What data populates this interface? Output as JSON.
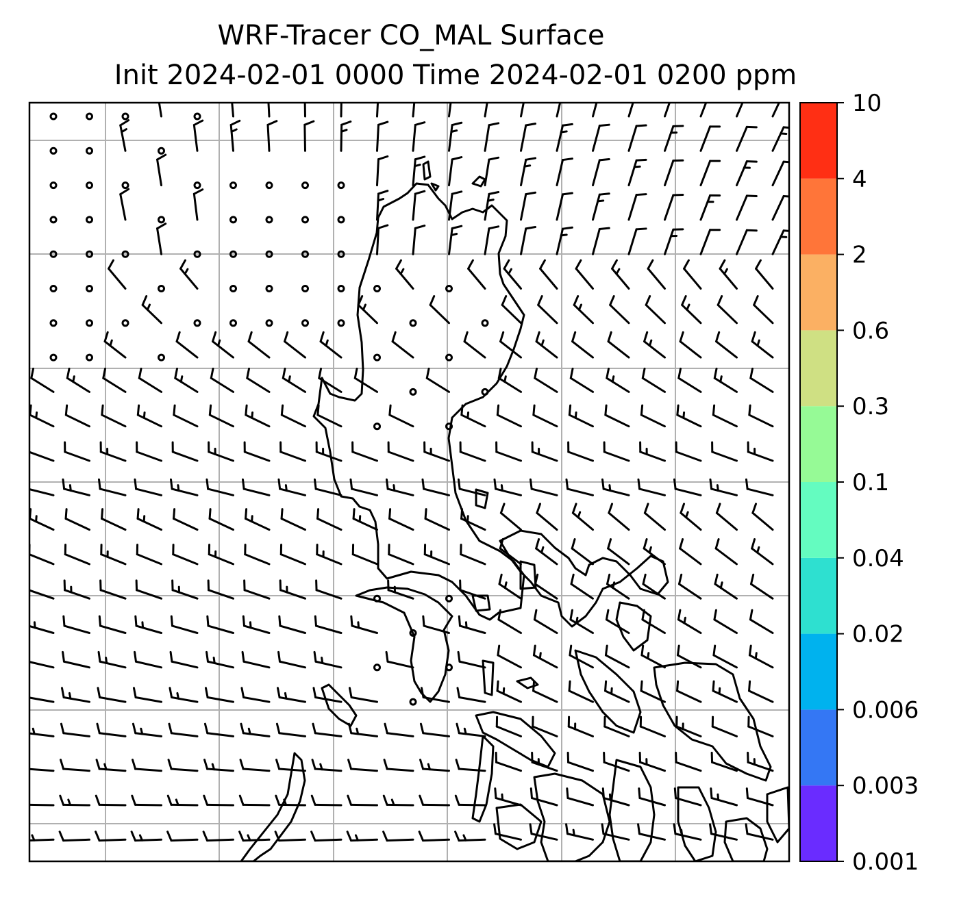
{
  "title": {
    "line1": "WRF-Tracer CO_MAL Surface",
    "line2": "Init 2024-02-01 0000 Time 2024-02-01 0200 ppm"
  },
  "map": {
    "grid": true,
    "features": [
      "coastlines",
      "wind-barbs",
      "calm-wind-circles"
    ],
    "line_color": "#000000",
    "grid_color": "#b0b0b0"
  },
  "colorbar": {
    "orientation": "vertical",
    "placement": "right",
    "levels": [
      "0.001",
      "0.003",
      "0.006",
      "0.02",
      "0.04",
      "0.1",
      "0.3",
      "0.6",
      "2",
      "4",
      "10"
    ],
    "colors": [
      "#6a2cff",
      "#3477f4",
      "#00b2ee",
      "#2ee0d0",
      "#64fcc0",
      "#96fa96",
      "#cfe083",
      "#fbb063",
      "#ff7539",
      "#ff2f14"
    ]
  }
}
